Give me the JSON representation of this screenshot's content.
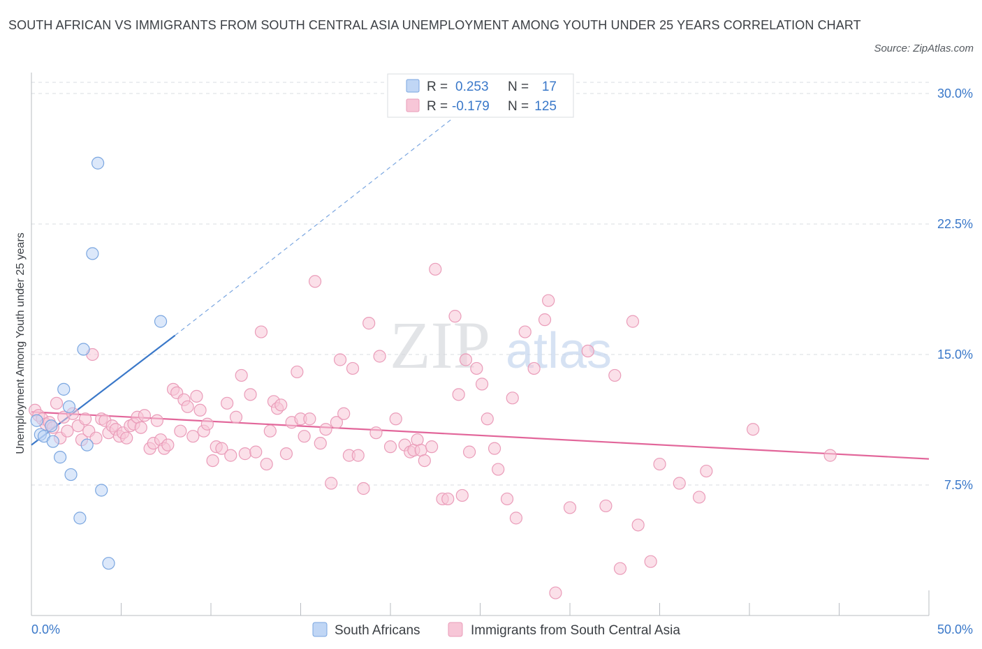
{
  "title": "SOUTH AFRICAN VS IMMIGRANTS FROM SOUTH CENTRAL ASIA UNEMPLOYMENT AMONG YOUTH UNDER 25 YEARS CORRELATION CHART",
  "source": "Source: ZipAtlas.com",
  "watermark": {
    "zip": "ZIP",
    "atlas": "atlas"
  },
  "colors": {
    "blue": "#3a78c9",
    "blue_fill": "#c0d6f5",
    "blue_stroke": "#7aa6e0",
    "pink": "#e2669a",
    "pink_fill": "#f7c6d7",
    "pink_stroke": "#ea9cb9",
    "axis_label": "#3a78c9",
    "grid": "#d9dce1"
  },
  "chart_data": {
    "type": "scatter",
    "title": "SOUTH AFRICAN VS IMMIGRANTS FROM SOUTH CENTRAL ASIA UNEMPLOYMENT AMONG YOUTH UNDER 25 YEARS CORRELATION CHART",
    "xlabel": "",
    "ylabel": "Unemployment Among Youth under 25 years",
    "xlim": [
      0,
      50
    ],
    "ylim": [
      0,
      30
    ],
    "x_tick_labels": [
      "0.0%",
      "50.0%"
    ],
    "y_ticks": [
      7.5,
      15.0,
      22.5,
      30.0
    ],
    "y_tick_labels": [
      "7.5%",
      "15.0%",
      "22.5%",
      "30.0%"
    ],
    "legend_position": "top-center",
    "series": [
      {
        "name": "South Africans",
        "R": "0.253",
        "N": "17",
        "trend": {
          "x0": 0,
          "y0": 9.8,
          "x1": 8,
          "y1": 16.1,
          "dash_to_x": 23.5,
          "dash_to_y": 28.6
        },
        "points": [
          [
            0.3,
            11.2
          ],
          [
            0.5,
            10.4
          ],
          [
            0.7,
            10.3
          ],
          [
            1.1,
            10.9
          ],
          [
            1.2,
            10.0
          ],
          [
            1.6,
            9.1
          ],
          [
            1.8,
            13.0
          ],
          [
            2.1,
            12.0
          ],
          [
            2.2,
            8.1
          ],
          [
            2.7,
            5.6
          ],
          [
            2.9,
            15.3
          ],
          [
            3.1,
            9.8
          ],
          [
            3.4,
            20.8
          ],
          [
            3.7,
            26.0
          ],
          [
            3.9,
            7.2
          ],
          [
            4.3,
            3.0
          ],
          [
            7.2,
            16.9
          ]
        ]
      },
      {
        "name": "Immigrants from South Central Asia",
        "R": "-0.179",
        "N": "125",
        "trend": {
          "x0": 0,
          "y0": 11.7,
          "x1": 50,
          "y1": 9.0
        },
        "points": [
          [
            0.2,
            11.8
          ],
          [
            0.4,
            11.5
          ],
          [
            0.6,
            11.3
          ],
          [
            0.8,
            11.0
          ],
          [
            1.0,
            11.1
          ],
          [
            1.2,
            10.8
          ],
          [
            1.4,
            12.2
          ],
          [
            1.6,
            10.2
          ],
          [
            1.8,
            11.4
          ],
          [
            2.0,
            10.6
          ],
          [
            2.3,
            11.6
          ],
          [
            2.6,
            10.9
          ],
          [
            2.8,
            10.1
          ],
          [
            3.0,
            11.3
          ],
          [
            3.2,
            10.6
          ],
          [
            3.4,
            15.0
          ],
          [
            3.6,
            10.2
          ],
          [
            3.9,
            11.3
          ],
          [
            4.1,
            11.2
          ],
          [
            4.3,
            10.5
          ],
          [
            4.5,
            10.9
          ],
          [
            4.7,
            10.7
          ],
          [
            4.9,
            10.3
          ],
          [
            5.1,
            10.5
          ],
          [
            5.3,
            10.2
          ],
          [
            5.5,
            10.9
          ],
          [
            5.7,
            11.0
          ],
          [
            5.9,
            11.4
          ],
          [
            6.1,
            10.8
          ],
          [
            6.3,
            11.5
          ],
          [
            6.6,
            9.6
          ],
          [
            6.8,
            9.9
          ],
          [
            7.0,
            11.2
          ],
          [
            7.2,
            10.1
          ],
          [
            7.4,
            9.6
          ],
          [
            7.6,
            9.8
          ],
          [
            7.9,
            13.0
          ],
          [
            8.1,
            12.8
          ],
          [
            8.3,
            10.6
          ],
          [
            8.5,
            12.4
          ],
          [
            8.7,
            12.0
          ],
          [
            9.0,
            10.3
          ],
          [
            9.2,
            12.6
          ],
          [
            9.4,
            11.8
          ],
          [
            9.6,
            10.6
          ],
          [
            9.8,
            11.0
          ],
          [
            10.1,
            8.9
          ],
          [
            10.3,
            9.7
          ],
          [
            10.6,
            9.6
          ],
          [
            10.9,
            12.2
          ],
          [
            11.1,
            9.2
          ],
          [
            11.4,
            11.4
          ],
          [
            11.7,
            13.8
          ],
          [
            11.9,
            9.3
          ],
          [
            12.2,
            12.7
          ],
          [
            12.5,
            9.4
          ],
          [
            12.8,
            16.3
          ],
          [
            13.1,
            8.7
          ],
          [
            13.3,
            10.6
          ],
          [
            13.5,
            12.3
          ],
          [
            13.7,
            11.9
          ],
          [
            13.9,
            12.1
          ],
          [
            14.2,
            9.3
          ],
          [
            14.5,
            11.1
          ],
          [
            14.8,
            14.0
          ],
          [
            15.0,
            11.3
          ],
          [
            15.2,
            10.3
          ],
          [
            15.5,
            11.3
          ],
          [
            15.8,
            19.2
          ],
          [
            16.1,
            9.9
          ],
          [
            16.4,
            10.7
          ],
          [
            16.7,
            7.6
          ],
          [
            17.0,
            11.1
          ],
          [
            17.2,
            14.7
          ],
          [
            17.4,
            11.6
          ],
          [
            17.7,
            9.2
          ],
          [
            17.9,
            14.2
          ],
          [
            18.2,
            9.2
          ],
          [
            18.5,
            7.3
          ],
          [
            18.8,
            16.8
          ],
          [
            19.2,
            10.5
          ],
          [
            19.4,
            14.9
          ],
          [
            20.0,
            9.7
          ],
          [
            20.3,
            11.3
          ],
          [
            20.8,
            9.8
          ],
          [
            21.1,
            9.4
          ],
          [
            21.3,
            9.5
          ],
          [
            21.5,
            10.1
          ],
          [
            21.7,
            9.5
          ],
          [
            21.9,
            8.9
          ],
          [
            22.3,
            9.7
          ],
          [
            22.5,
            19.9
          ],
          [
            22.9,
            6.7
          ],
          [
            23.2,
            6.7
          ],
          [
            23.6,
            17.2
          ],
          [
            23.8,
            12.7
          ],
          [
            24.0,
            6.9
          ],
          [
            24.2,
            14.7
          ],
          [
            24.4,
            9.4
          ],
          [
            24.8,
            14.2
          ],
          [
            25.1,
            13.3
          ],
          [
            25.4,
            11.3
          ],
          [
            25.8,
            9.6
          ],
          [
            26.0,
            8.4
          ],
          [
            26.5,
            6.7
          ],
          [
            26.8,
            12.5
          ],
          [
            27.0,
            5.6
          ],
          [
            27.5,
            16.3
          ],
          [
            28.0,
            14.2
          ],
          [
            28.6,
            17.0
          ],
          [
            28.8,
            18.1
          ],
          [
            29.2,
            1.3
          ],
          [
            30.0,
            6.2
          ],
          [
            31.0,
            15.2
          ],
          [
            32.0,
            6.3
          ],
          [
            32.5,
            13.8
          ],
          [
            32.8,
            2.7
          ],
          [
            33.5,
            16.9
          ],
          [
            33.8,
            5.2
          ],
          [
            34.5,
            3.1
          ],
          [
            35.0,
            8.7
          ],
          [
            36.1,
            7.6
          ],
          [
            37.2,
            6.8
          ],
          [
            37.6,
            8.3
          ],
          [
            40.2,
            10.7
          ],
          [
            44.5,
            9.2
          ]
        ]
      }
    ]
  }
}
